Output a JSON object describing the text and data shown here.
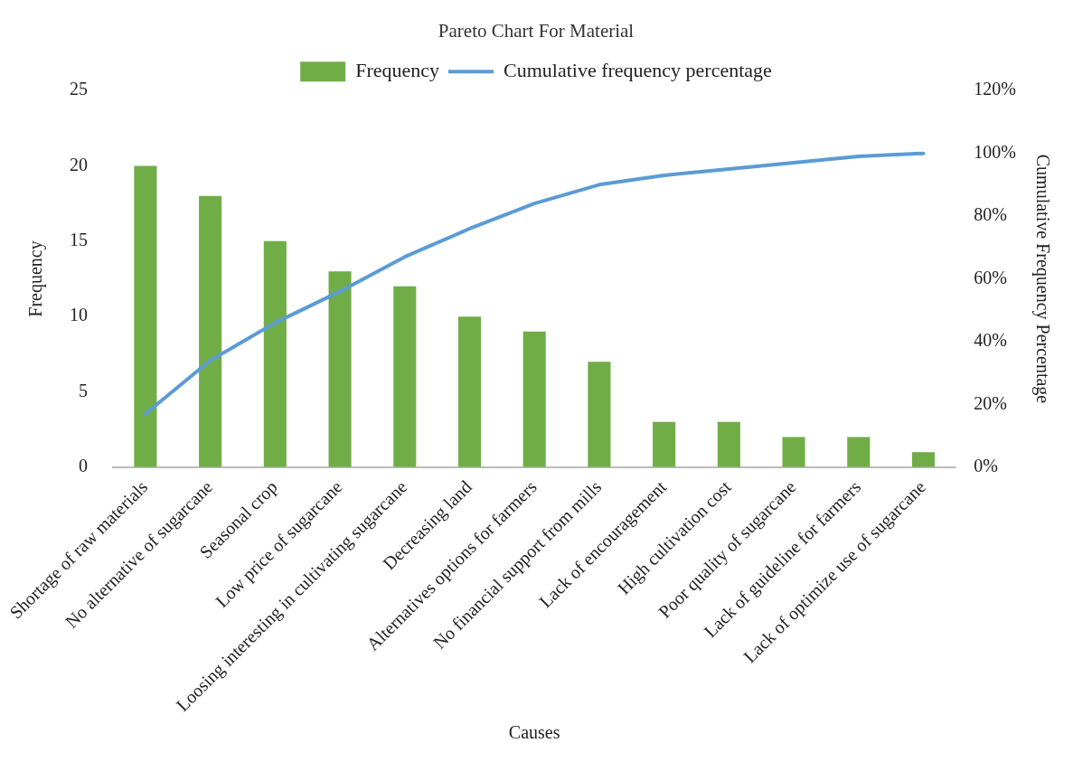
{
  "chart_data": {
    "type": "bar",
    "title": "Pareto Chart For Material",
    "xlabel": "Causes",
    "ylabel": "Frequency",
    "y2label": "Cumulative Frequency Percentage",
    "categories": [
      "Shortage of raw materials",
      "No alternative of sugarcane",
      "Seasonal crop",
      "Low price of sugarcane",
      "Loosing interesting in cultivating sugarcane",
      "Decreasing land",
      "Alternatives options for farmers",
      "No financial support from mills",
      "Lack of encouragement",
      "High cultivation cost",
      "Poor quality of sugarcane",
      "Lack of guideline for farmers",
      "Lack of optimize use of sugarcane"
    ],
    "series": [
      {
        "name": "Frequency",
        "color": "#70ad47",
        "values": [
          20,
          18,
          15,
          13,
          12,
          10,
          9,
          7,
          3,
          3,
          2,
          2,
          1
        ]
      },
      {
        "name": "Cumulative frequency percentage",
        "type": "line",
        "axis": "y2",
        "color": "#5b9bd5",
        "values": [
          17,
          34,
          46,
          56,
          67,
          76,
          84,
          90,
          93,
          95,
          97,
          99,
          100
        ]
      }
    ],
    "ylim": [
      0,
      25
    ],
    "yticks": [
      0,
      5,
      10,
      15,
      20,
      25
    ],
    "y2lim": [
      0,
      120
    ],
    "y2ticks": [
      {
        "value": 0,
        "label": "0%"
      },
      {
        "value": 20,
        "label": "20%"
      },
      {
        "value": 40,
        "label": "40%"
      },
      {
        "value": 60,
        "label": "60%"
      },
      {
        "value": 80,
        "label": "80%"
      },
      {
        "value": 100,
        "label": "100%"
      },
      {
        "value": 120,
        "label": "120%"
      }
    ],
    "grid": false,
    "legend": "top",
    "marker": "none",
    "line_style": "solid"
  }
}
